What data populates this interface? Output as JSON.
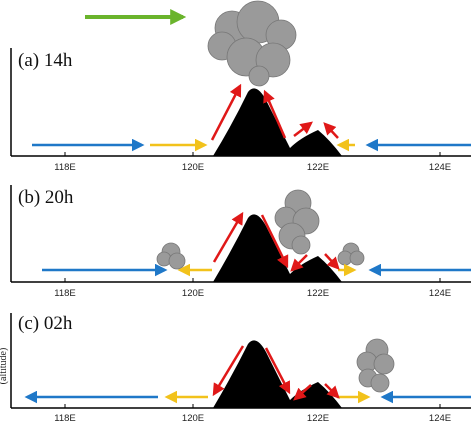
{
  "panels": [
    {
      "id": "a",
      "title": "(a) 14h",
      "x_ticks": [
        "118E",
        "120E",
        "122E",
        "124E"
      ]
    },
    {
      "id": "b",
      "title": "(b) 20h",
      "x_ticks": [
        "118E",
        "120E",
        "122E",
        "124E"
      ]
    },
    {
      "id": "c",
      "title": "(c) 02h",
      "x_ticks": [
        "118E",
        "120E",
        "122E",
        "124E"
      ],
      "side_label": "(altitude)"
    }
  ],
  "colors": {
    "synoptic_wind": "#1f78c8",
    "sea_breeze": "#f2c21b",
    "slope_flow": "#e01818",
    "mean_flow": "#6ab42c",
    "cloud": "#9a9a9a",
    "terrain": "#000000"
  }
}
